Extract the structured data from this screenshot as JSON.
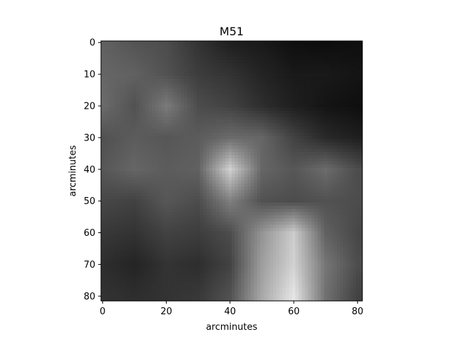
{
  "chart_data": {
    "type": "heatmap",
    "title": "M51",
    "xlabel": "arcminutes",
    "ylabel": "arcminutes",
    "colormap": "gray",
    "xlim": [
      -0.5,
      81.5
    ],
    "ylim": [
      81.5,
      -0.5
    ],
    "xticks": [
      0,
      20,
      40,
      60,
      80
    ],
    "yticks": [
      0,
      10,
      20,
      30,
      40,
      50,
      60,
      70,
      80
    ],
    "grid": false,
    "intensity_grid": {
      "description_units": "relative brightness 0-1 sampled at x,y (arcminutes)",
      "x": [
        0,
        10,
        20,
        30,
        40,
        50,
        60,
        70,
        80
      ],
      "y": [
        0,
        10,
        20,
        30,
        40,
        50,
        60,
        70,
        80
      ],
      "values": [
        [
          0.38,
          0.33,
          0.3,
          0.2,
          0.12,
          0.1,
          0.06,
          0.05,
          0.06
        ],
        [
          0.4,
          0.38,
          0.32,
          0.24,
          0.2,
          0.14,
          0.1,
          0.1,
          0.08
        ],
        [
          0.42,
          0.32,
          0.48,
          0.3,
          0.26,
          0.18,
          0.12,
          0.08,
          0.06
        ],
        [
          0.32,
          0.36,
          0.34,
          0.36,
          0.42,
          0.4,
          0.26,
          0.16,
          0.12
        ],
        [
          0.34,
          0.4,
          0.36,
          0.38,
          0.82,
          0.4,
          0.34,
          0.42,
          0.3
        ],
        [
          0.28,
          0.26,
          0.34,
          0.3,
          0.5,
          0.32,
          0.3,
          0.32,
          0.3
        ],
        [
          0.22,
          0.2,
          0.26,
          0.24,
          0.3,
          0.58,
          0.8,
          0.38,
          0.28
        ],
        [
          0.18,
          0.14,
          0.2,
          0.18,
          0.26,
          0.62,
          0.82,
          0.46,
          0.3
        ],
        [
          0.2,
          0.18,
          0.2,
          0.22,
          0.32,
          0.66,
          0.9,
          0.44,
          0.26
        ]
      ]
    }
  }
}
